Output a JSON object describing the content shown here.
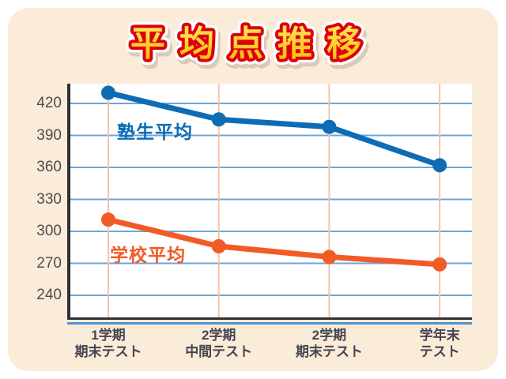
{
  "title": "平均点推移",
  "chart_data": {
    "type": "line",
    "title": "平均点推移",
    "categories": [
      "1学期 期末テスト",
      "2学期 中間テスト",
      "2学期 期末テスト",
      "学年末 テスト"
    ],
    "category_lines": [
      [
        "1学期",
        "期末テスト"
      ],
      [
        "2学期",
        "中間テスト"
      ],
      [
        "2学期",
        "期末テスト"
      ],
      [
        "学年末",
        "テスト"
      ]
    ],
    "yticks": [
      420,
      390,
      360,
      330,
      300,
      270,
      240
    ],
    "ylim": [
      216,
      440
    ],
    "grid": true,
    "legend_position": "inline-on-chart",
    "series": [
      {
        "name": "塾生平均",
        "color": "#0E6CB5",
        "values": [
          430,
          405,
          398,
          362
        ]
      },
      {
        "name": "学校平均",
        "color": "#F15B27",
        "values": [
          311,
          286,
          276,
          269
        ]
      }
    ],
    "colors": {
      "card_bg": "#FBEBD9",
      "plot_bg": "#FFFFFF",
      "gridline": "#6CA6D9",
      "category_line": "#F6C4AC",
      "axis": "#2F3037",
      "axis_underline": "#4E94CE",
      "tick_text": "#4D4D4D",
      "title_fill_top": "#FFE75E",
      "title_fill_bottom": "#FCB900",
      "title_stroke": "#DC000C"
    }
  }
}
